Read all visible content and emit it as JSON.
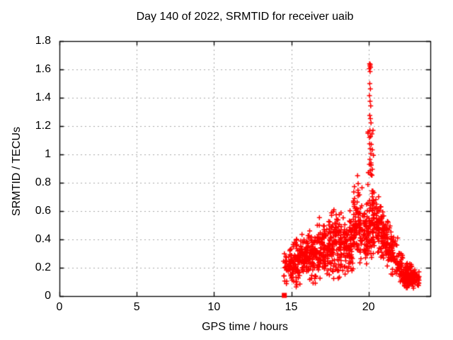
{
  "chart_data": {
    "type": "scatter",
    "title": "Day 140 of 2022, SRMTID for receiver uaib",
    "xlabel": "GPS time / hours",
    "ylabel": "SRMTID / TECUs",
    "xlim": [
      0,
      24
    ],
    "ylim": [
      0,
      1.8
    ],
    "xticks": {
      "values": [
        0,
        5,
        10,
        15,
        20
      ],
      "labels": [
        "0",
        "5",
        "10",
        "15",
        "20"
      ]
    },
    "yticks": {
      "values": [
        0,
        0.2,
        0.4,
        0.6,
        0.8,
        1,
        1.2,
        1.4,
        1.6,
        1.8
      ],
      "labels": [
        "0",
        "0.2",
        "0.4",
        "0.6",
        "0.8",
        "1",
        "1.2",
        "1.4",
        "1.6",
        "1.8"
      ]
    },
    "grid": {
      "show": true,
      "color": "#a8a8a8",
      "dash": [
        2,
        4
      ]
    },
    "colors": {
      "points": "#ff0000",
      "border": "#000000",
      "background": "#ffffff",
      "text": "#000000"
    },
    "legend": {
      "show": false
    },
    "series": [
      {
        "name": "srmtid-scatter",
        "marker": "plus",
        "color": "#ff0000",
        "seed": 42,
        "clusters": [
          {
            "t": 14.85,
            "dt": 0.35,
            "v0": 0.05,
            "v1": 0.35,
            "n": 40,
            "d": "mid"
          },
          {
            "t": 15.2,
            "dt": 0.3,
            "v0": 0.08,
            "v1": 0.43,
            "n": 50,
            "d": "mid"
          },
          {
            "t": 15.55,
            "dt": 0.3,
            "v0": 0.05,
            "v1": 0.38,
            "n": 45,
            "d": "mid"
          },
          {
            "t": 15.9,
            "dt": 0.3,
            "v0": 0.1,
            "v1": 0.47,
            "n": 50,
            "d": "mid"
          },
          {
            "t": 16.25,
            "dt": 0.3,
            "v0": 0.08,
            "v1": 0.5,
            "n": 50,
            "d": "mid"
          },
          {
            "t": 16.6,
            "dt": 0.3,
            "v0": 0.05,
            "v1": 0.47,
            "n": 45,
            "d": "mid"
          },
          {
            "t": 16.95,
            "dt": 0.3,
            "v0": 0.12,
            "v1": 0.57,
            "n": 50,
            "d": "mid"
          },
          {
            "t": 17.3,
            "dt": 0.3,
            "v0": 0.08,
            "v1": 0.52,
            "n": 45,
            "d": "mid"
          },
          {
            "t": 17.65,
            "dt": 0.3,
            "v0": 0.12,
            "v1": 0.62,
            "n": 50,
            "d": "mid"
          },
          {
            "t": 17.95,
            "dt": 0.3,
            "v0": 0.1,
            "v1": 0.74,
            "n": 50,
            "d": "mid"
          },
          {
            "t": 18.3,
            "dt": 0.3,
            "v0": 0.08,
            "v1": 0.6,
            "n": 50,
            "d": "mid"
          },
          {
            "t": 18.65,
            "dt": 0.3,
            "v0": 0.12,
            "v1": 0.62,
            "n": 50,
            "d": "mid"
          },
          {
            "t": 19.0,
            "dt": 0.3,
            "v0": 0.18,
            "v1": 0.72,
            "n": 50,
            "d": "mid"
          },
          {
            "t": 19.3,
            "dt": 0.3,
            "v0": 0.15,
            "v1": 0.86,
            "n": 50,
            "d": "mid"
          },
          {
            "t": 19.65,
            "dt": 0.3,
            "v0": 0.2,
            "v1": 0.68,
            "n": 50,
            "d": "mid"
          },
          {
            "t": 19.95,
            "dt": 0.25,
            "v0": 0.25,
            "v1": 0.62,
            "n": 40,
            "d": "mid"
          },
          {
            "t": 20.15,
            "dt": 0.22,
            "v0": 0.3,
            "v1": 1.4,
            "n": 45,
            "d": "low"
          },
          {
            "t": 20.45,
            "dt": 0.25,
            "v0": 0.28,
            "v1": 0.78,
            "n": 50,
            "d": "mid"
          },
          {
            "t": 20.75,
            "dt": 0.25,
            "v0": 0.25,
            "v1": 0.68,
            "n": 45,
            "d": "mid"
          },
          {
            "t": 21.05,
            "dt": 0.25,
            "v0": 0.2,
            "v1": 0.6,
            "n": 40,
            "d": "mid"
          },
          {
            "t": 21.35,
            "dt": 0.25,
            "v0": 0.15,
            "v1": 0.52,
            "n": 38,
            "d": "mid"
          },
          {
            "t": 21.65,
            "dt": 0.25,
            "v0": 0.12,
            "v1": 0.46,
            "n": 35,
            "d": "mid"
          },
          {
            "t": 21.95,
            "dt": 0.25,
            "v0": 0.08,
            "v1": 0.36,
            "n": 32,
            "d": "mid"
          },
          {
            "t": 22.3,
            "dt": 0.3,
            "v0": 0.06,
            "v1": 0.28,
            "n": 45,
            "d": "mid"
          },
          {
            "t": 22.65,
            "dt": 0.35,
            "v0": 0.04,
            "v1": 0.24,
            "n": 80,
            "d": "mid"
          },
          {
            "t": 23.0,
            "dt": 0.3,
            "v0": 0.05,
            "v1": 0.18,
            "n": 50,
            "d": "mid"
          }
        ],
        "peak_points": [
          [
            20.07,
            1.64
          ],
          [
            20.11,
            1.635
          ],
          [
            20.09,
            1.625
          ],
          [
            20.13,
            1.615
          ],
          [
            20.05,
            1.605
          ],
          [
            20.1,
            1.585
          ],
          [
            20.08,
            1.5
          ],
          [
            20.12,
            1.462
          ],
          [
            20.06,
            1.415
          ],
          [
            20.1,
            1.375
          ],
          [
            20.14,
            1.342
          ],
          [
            20.08,
            1.275
          ],
          [
            20.12,
            1.252
          ],
          [
            20.16,
            1.222
          ],
          [
            20.09,
            1.17
          ],
          [
            20.13,
            1.128
          ],
          [
            20.07,
            1.075
          ],
          [
            20.11,
            1.04
          ],
          [
            20.15,
            1.005
          ],
          [
            20.09,
            0.965
          ],
          [
            20.17,
            0.925
          ],
          [
            20.12,
            0.885
          ],
          [
            20.19,
            0.855
          ]
        ]
      },
      {
        "name": "start-marker",
        "marker": "square",
        "color": "#ff0000",
        "points": [
          [
            14.55,
            0.005
          ]
        ]
      }
    ]
  }
}
